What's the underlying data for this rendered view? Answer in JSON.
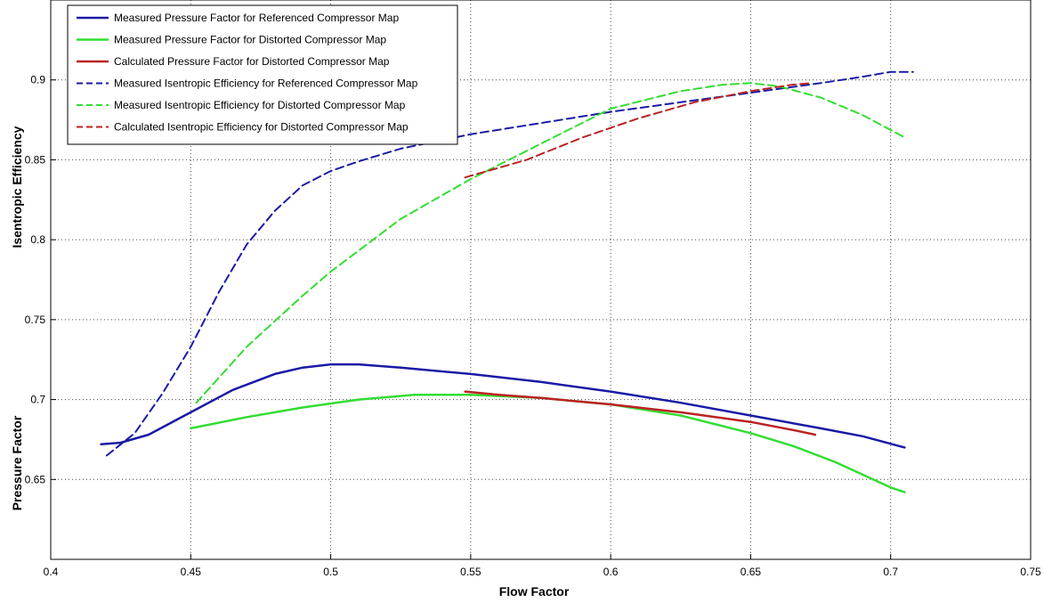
{
  "chart_data": {
    "type": "line",
    "xlabel": "Flow Factor",
    "ylabel_top": "Isentropic Efficiency",
    "ylabel_bottom": "Pressure Factor",
    "xlim": [
      0.4,
      0.75
    ],
    "ylim": [
      0.6,
      0.95
    ],
    "xticks": [
      "0.4",
      "0.45",
      "0.5",
      "0.55",
      "0.6",
      "0.65",
      "0.7",
      "0.75"
    ],
    "yticks": [
      "0.65",
      "0.7",
      "0.75",
      "0.8",
      "0.85",
      "0.9"
    ],
    "grid": true,
    "legend_position": "top-left",
    "series": [
      {
        "name": "Measured Pressure Factor for Referenced Compressor Map",
        "color": "#1a1aa6",
        "style": "solid",
        "x": [
          0.418,
          0.425,
          0.435,
          0.45,
          0.465,
          0.48,
          0.49,
          0.5,
          0.51,
          0.525,
          0.55,
          0.575,
          0.6,
          0.625,
          0.65,
          0.675,
          0.69,
          0.705
        ],
        "y": [
          0.672,
          0.673,
          0.678,
          0.692,
          0.706,
          0.716,
          0.72,
          0.722,
          0.722,
          0.72,
          0.716,
          0.711,
          0.705,
          0.698,
          0.69,
          0.682,
          0.677,
          0.67
        ]
      },
      {
        "name": "Measured Pressure Factor for Distorted Compressor Map",
        "color": "#33dd33",
        "style": "solid",
        "x": [
          0.45,
          0.47,
          0.49,
          0.51,
          0.53,
          0.55,
          0.575,
          0.6,
          0.625,
          0.65,
          0.665,
          0.68,
          0.69,
          0.7,
          0.705
        ],
        "y": [
          0.682,
          0.689,
          0.695,
          0.7,
          0.703,
          0.703,
          0.701,
          0.697,
          0.69,
          0.679,
          0.671,
          0.661,
          0.653,
          0.645,
          0.642
        ]
      },
      {
        "name": "Calculated Pressure Factor for Distorted Compressor Map",
        "color": "#bb2222",
        "style": "solid",
        "x": [
          0.548,
          0.56,
          0.575,
          0.6,
          0.625,
          0.65,
          0.665,
          0.673
        ],
        "y": [
          0.705,
          0.703,
          0.701,
          0.697,
          0.692,
          0.686,
          0.681,
          0.678
        ]
      },
      {
        "name": "Measured Isentropic Efficiency for Referenced Compressor Map",
        "color": "#1a1aa6",
        "style": "dashed",
        "x": [
          0.42,
          0.43,
          0.44,
          0.45,
          0.46,
          0.47,
          0.48,
          0.49,
          0.5,
          0.51,
          0.525,
          0.55,
          0.575,
          0.6,
          0.625,
          0.65,
          0.675,
          0.69,
          0.7,
          0.708
        ],
        "y": [
          0.665,
          0.679,
          0.704,
          0.733,
          0.767,
          0.797,
          0.818,
          0.834,
          0.843,
          0.849,
          0.857,
          0.866,
          0.873,
          0.88,
          0.886,
          0.892,
          0.898,
          0.902,
          0.905,
          0.905
        ]
      },
      {
        "name": "Measured Isentropic Efficiency for Distorted Compressor Map",
        "color": "#33dd33",
        "style": "dashed",
        "x": [
          0.452,
          0.47,
          0.49,
          0.5,
          0.525,
          0.55,
          0.575,
          0.6,
          0.625,
          0.64,
          0.65,
          0.66,
          0.675,
          0.69,
          0.705
        ],
        "y": [
          0.698,
          0.733,
          0.765,
          0.78,
          0.813,
          0.838,
          0.86,
          0.882,
          0.893,
          0.897,
          0.898,
          0.896,
          0.889,
          0.878,
          0.864
        ]
      },
      {
        "name": "Calculated Isentropic Efficiency for Distorted Compressor Map",
        "color": "#bb2222",
        "style": "dashed",
        "x": [
          0.548,
          0.57,
          0.59,
          0.61,
          0.63,
          0.65,
          0.665,
          0.672
        ],
        "y": [
          0.839,
          0.85,
          0.864,
          0.876,
          0.886,
          0.893,
          0.897,
          0.898
        ]
      }
    ]
  }
}
